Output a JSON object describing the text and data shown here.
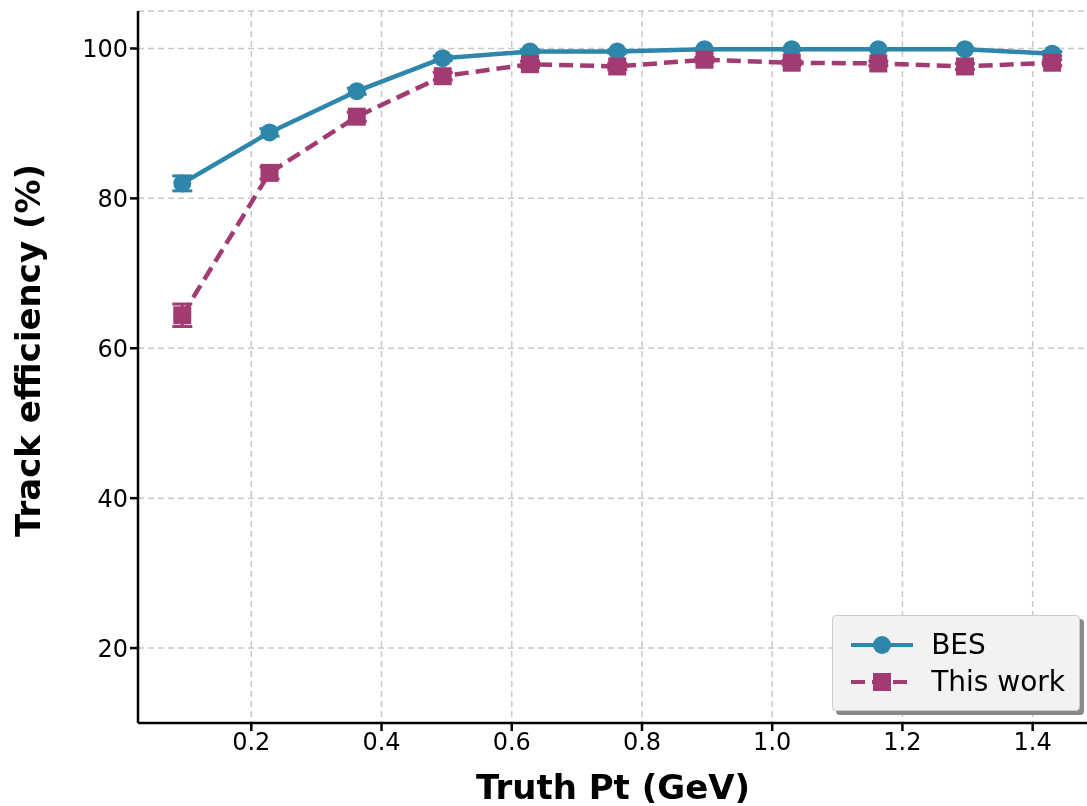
{
  "chart_data": {
    "type": "line",
    "xlabel": "Truth Pt (GeV)",
    "ylabel": "Track efficiency (%)",
    "x": [
      0.094,
      0.228,
      0.362,
      0.494,
      0.628,
      0.762,
      0.896,
      1.03,
      1.163,
      1.296,
      1.43
    ],
    "series": [
      {
        "name": "BES",
        "color": "#2e86ab",
        "marker": "circle",
        "line_style": "solid",
        "values": [
          82.0,
          88.8,
          94.3,
          98.7,
          99.6,
          99.6,
          99.9,
          99.9,
          99.9,
          99.9,
          99.3
        ],
        "errors": [
          1.0,
          0.5,
          0.4,
          0.3,
          0.2,
          0.2,
          0.1,
          0.1,
          0.1,
          0.1,
          0.3
        ]
      },
      {
        "name": "This work",
        "color": "#a23b72",
        "marker": "square",
        "line_style": "dashed",
        "values": [
          64.4,
          83.4,
          90.9,
          96.3,
          97.9,
          97.6,
          98.5,
          98.1,
          98.0,
          97.6,
          98.1
        ],
        "errors": [
          1.5,
          0.8,
          0.6,
          0.5,
          0.4,
          0.4,
          0.3,
          0.3,
          0.3,
          0.4,
          0.4
        ]
      }
    ],
    "xlim": [
      0.026,
      1.485
    ],
    "xticks": [
      {
        "value": 0.2,
        "label": "0.2"
      },
      {
        "value": 0.4,
        "label": "0.4"
      },
      {
        "value": 0.6,
        "label": "0.6"
      },
      {
        "value": 0.8,
        "label": "0.8"
      },
      {
        "value": 1.0,
        "label": "1.0"
      },
      {
        "value": 1.2,
        "label": "1.2"
      },
      {
        "value": 1.4,
        "label": "1.4"
      }
    ],
    "ylim": [
      10,
      105
    ],
    "yticks": [
      20,
      40,
      60,
      80,
      100
    ],
    "grid": true,
    "legend": "bottom right"
  }
}
